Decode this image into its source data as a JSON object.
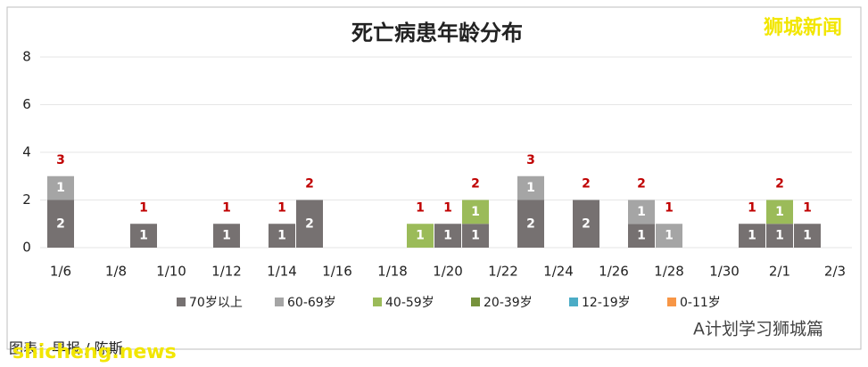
{
  "chart_data": {
    "type": "stacked_bar",
    "title": "死亡病患年龄分布",
    "watermark": "狮城新闻",
    "source": "图表：早报 / 陈斯",
    "site": "shicheng.news",
    "account": "A计划学习狮城篇",
    "categories": [
      "1/6",
      null,
      "1/8",
      null,
      "1/10",
      null,
      "1/12",
      null,
      "1/14",
      null,
      "1/16",
      null,
      "1/18",
      null,
      "1/20",
      null,
      "1/22",
      null,
      "1/24",
      null,
      "1/26",
      null,
      "1/28",
      null,
      "1/30",
      null,
      "2/1",
      null,
      "2/3"
    ],
    "series": [
      {
        "name": "70岁以上",
        "color": "#767171",
        "values": [
          2,
          null,
          null,
          1,
          null,
          null,
          1,
          null,
          1,
          2,
          null,
          null,
          null,
          null,
          1,
          1,
          null,
          2,
          null,
          2,
          null,
          1,
          null,
          null,
          null,
          1,
          1,
          1,
          null
        ]
      },
      {
        "name": "60-69岁",
        "color": "#a5a5a5",
        "values": [
          1,
          null,
          null,
          null,
          null,
          null,
          null,
          null,
          null,
          null,
          null,
          null,
          null,
          null,
          null,
          null,
          null,
          1,
          null,
          null,
          null,
          1,
          1,
          null,
          null,
          null,
          null,
          null,
          null
        ]
      },
      {
        "name": "40-59岁",
        "color": "#9bbb59",
        "values": [
          null,
          null,
          null,
          null,
          null,
          null,
          null,
          null,
          null,
          null,
          null,
          null,
          null,
          1,
          null,
          1,
          null,
          null,
          null,
          null,
          null,
          null,
          null,
          null,
          null,
          null,
          1,
          null,
          null
        ]
      },
      {
        "name": "20-39岁",
        "color": "#76923c",
        "values": [
          null,
          null,
          null,
          null,
          null,
          null,
          null,
          null,
          null,
          null,
          null,
          null,
          null,
          null,
          null,
          null,
          null,
          null,
          null,
          null,
          null,
          null,
          null,
          null,
          null,
          null,
          null,
          null,
          null
        ]
      },
      {
        "name": "12-19岁",
        "color": "#4bacc6",
        "values": [
          null,
          null,
          null,
          null,
          null,
          null,
          null,
          null,
          null,
          null,
          null,
          null,
          null,
          null,
          null,
          null,
          null,
          null,
          null,
          null,
          null,
          null,
          null,
          null,
          null,
          null,
          null,
          null,
          null
        ]
      },
      {
        "name": "0-11岁",
        "color": "#f79646",
        "values": [
          null,
          null,
          null,
          null,
          null,
          null,
          null,
          null,
          null,
          null,
          null,
          null,
          null,
          null,
          null,
          null,
          null,
          null,
          null,
          null,
          null,
          null,
          null,
          null,
          null,
          null,
          null,
          null,
          null
        ]
      }
    ],
    "totals": [
      3,
      null,
      null,
      1,
      null,
      null,
      1,
      null,
      1,
      2,
      null,
      null,
      null,
      1,
      1,
      2,
      null,
      3,
      null,
      2,
      null,
      2,
      1,
      null,
      null,
      1,
      2,
      1,
      null
    ],
    "ylim": [
      0,
      8
    ],
    "yticks": [
      0,
      2,
      4,
      6,
      8
    ],
    "grid": true
  }
}
